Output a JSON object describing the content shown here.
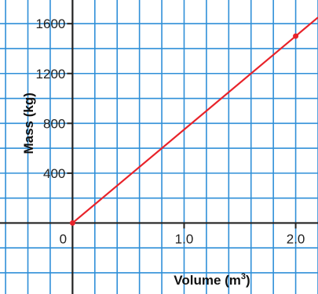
{
  "chart_data": {
    "type": "line",
    "title": "",
    "xlabel": "Volume (m",
    "xlabel_superscript": "3",
    "xlabel_close": ")",
    "ylabel": "Mass (kg)",
    "origin_label": "0",
    "xlim": [
      -0.65,
      2.2
    ],
    "ylim": [
      -570,
      1790
    ],
    "x_ticks": [
      {
        "value": 1.0,
        "label": "1.0"
      },
      {
        "value": 2.0,
        "label": "2.0"
      }
    ],
    "y_ticks": [
      {
        "value": 400,
        "label": "400"
      },
      {
        "value": 800,
        "label": "800"
      },
      {
        "value": 1200,
        "label": "1200"
      },
      {
        "value": 1600,
        "label": "1600"
      }
    ],
    "grid": true,
    "grid_step_x": 0.2,
    "grid_step_y": 200,
    "series": [
      {
        "x": [
          0,
          2.0,
          2.2
        ],
        "y": [
          0,
          1500,
          1650
        ]
      }
    ],
    "marked_points": [
      {
        "x": 0,
        "y": 0
      },
      {
        "x": 2.0,
        "y": 1500
      }
    ],
    "colors": {
      "grid": "#2f8fd8",
      "axis": "#222222",
      "line": "#e8232a",
      "background": "#ffffff"
    }
  }
}
